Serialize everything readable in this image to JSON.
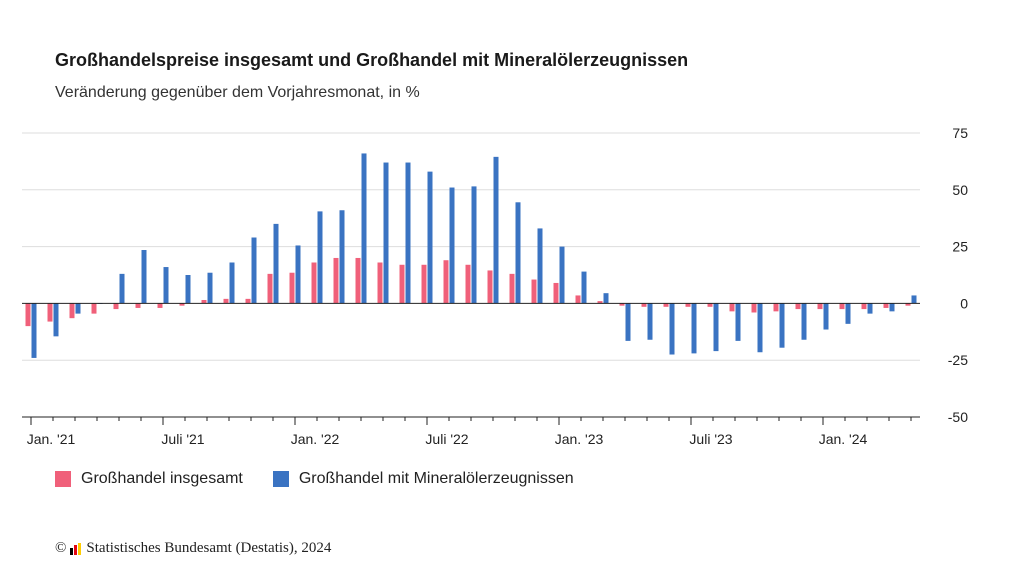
{
  "title": "Großhandelspreise insgesamt und Großhandel mit Mineralölerzeugnissen",
  "subtitle": "Veränderung gegenüber dem Vorjahresmonat, in %",
  "footer": {
    "copyright_symbol": "©",
    "source": "Statistisches Bundesamt (Destatis), 2024"
  },
  "colors": {
    "series1": "#f0607a",
    "series2": "#3a73c2",
    "grid": "#dddddd",
    "axis": "#222222",
    "logo": [
      "#000000",
      "#e30613",
      "#ffcc00"
    ]
  },
  "chart_data": {
    "type": "bar",
    "title": "Großhandelspreise insgesamt und Großhandel mit Mineralölerzeugnissen",
    "subtitle": "Veränderung gegenüber dem Vorjahresmonat, in %",
    "ylim": [
      -50,
      75
    ],
    "yticks": [
      75,
      50,
      25,
      0,
      -25,
      -50
    ],
    "y_axis_side": "right",
    "grid": true,
    "legend_position": "bottom-left",
    "categories": [
      "2021-01",
      "2021-02",
      "2021-03",
      "2021-04",
      "2021-05",
      "2021-06",
      "2021-07",
      "2021-08",
      "2021-09",
      "2021-10",
      "2021-11",
      "2021-12",
      "2022-01",
      "2022-02",
      "2022-03",
      "2022-04",
      "2022-05",
      "2022-06",
      "2022-07",
      "2022-08",
      "2022-09",
      "2022-10",
      "2022-11",
      "2022-12",
      "2023-01",
      "2023-02",
      "2023-03",
      "2023-04",
      "2023-05",
      "2023-06",
      "2023-07",
      "2023-08",
      "2023-09",
      "2023-10",
      "2023-11",
      "2023-12",
      "2024-01",
      "2024-02",
      "2024-03",
      "2024-04",
      "2024-05"
    ],
    "x_tick_labels": [
      {
        "index": 0,
        "label": "Jan. '21"
      },
      {
        "index": 6,
        "label": "Juli '21"
      },
      {
        "index": 12,
        "label": "Jan. '22"
      },
      {
        "index": 18,
        "label": "Juli '22"
      },
      {
        "index": 24,
        "label": "Jan. '23"
      },
      {
        "index": 30,
        "label": "Juli '23"
      },
      {
        "index": 36,
        "label": "Jan. '24"
      }
    ],
    "series": [
      {
        "name": "Großhandel insgesamt",
        "color": "#f0607a",
        "values": [
          -10,
          -8,
          -6.5,
          -4.5,
          -2.5,
          -2,
          -2,
          -1,
          1.5,
          2,
          2,
          13,
          13.5,
          18,
          20,
          20,
          18,
          17,
          17,
          19,
          17,
          14.5,
          13,
          10.5,
          9,
          3.5,
          1,
          -1,
          -1.5,
          -1.5,
          -1.5,
          -1.5,
          -3.5,
          -4,
          -3.5,
          -2.5,
          -2.5,
          -2.5,
          -2.5,
          -2,
          -1
        ]
      },
      {
        "name": "Großhandel mit Mineralölerzeugnissen",
        "color": "#3a73c2",
        "values": [
          -24,
          -14.5,
          -4.5,
          0,
          13,
          23.5,
          16,
          12.5,
          13.5,
          18,
          29,
          35,
          25.5,
          40.5,
          41,
          66,
          62,
          62,
          58,
          51,
          51.5,
          64.5,
          44.5,
          33,
          25,
          14,
          4.5,
          -16.5,
          -16,
          -22.5,
          -22,
          -21,
          -16.5,
          -21.5,
          -19.5,
          -16,
          -11.5,
          -9,
          -4.5,
          -3.5,
          3.5
        ]
      }
    ]
  }
}
